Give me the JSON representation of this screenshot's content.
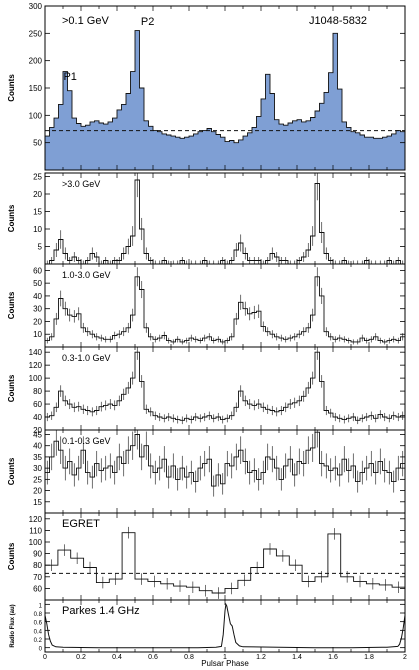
{
  "figure": {
    "source_label": "J1048-5832",
    "x_label": "Pulsar Phase",
    "x_ticks": [
      "0",
      "0.2",
      "0.4",
      "0.6",
      "0.8",
      "1",
      "1.2",
      "1.4",
      "1.6",
      "1.8",
      "2"
    ],
    "fill_color": "#7f9fd4",
    "line_color": "#111111"
  },
  "chart_data": [
    {
      "type": "area",
      "panel_label": ">0.1 GeV",
      "ylabel": "Counts",
      "xlim": [
        0,
        2
      ],
      "ylim": [
        0,
        300
      ],
      "yticks": [
        50,
        100,
        150,
        200,
        250,
        300
      ],
      "filled": true,
      "baseline": 72,
      "peak_labels": [
        {
          "text": "P1",
          "x": 0.14,
          "y": 165
        },
        {
          "text": "P2",
          "x": 0.57,
          "y": 265
        }
      ],
      "values": [
        62,
        78,
        95,
        120,
        180,
        145,
        95,
        85,
        80,
        82,
        88,
        90,
        86,
        84,
        88,
        95,
        110,
        120,
        140,
        180,
        255,
        150,
        90,
        80,
        72,
        70,
        66,
        64,
        62,
        60,
        58,
        60,
        62,
        66,
        70,
        72,
        76,
        70,
        65,
        60,
        52,
        54,
        50,
        55,
        62,
        68,
        78,
        98,
        130,
        175,
        140,
        92,
        84,
        82,
        86,
        90,
        92,
        88,
        90,
        96,
        108,
        122,
        142,
        178,
        250,
        148,
        88,
        78,
        70,
        68,
        64,
        60,
        60,
        58,
        58,
        60,
        62,
        66,
        72,
        70
      ]
    },
    {
      "type": "line",
      "panel_label": ">3.0 GeV",
      "ylabel": "Counts",
      "xlim": [
        0,
        2
      ],
      "ylim": [
        0,
        26
      ],
      "yticks": [
        5,
        10,
        15,
        20,
        25
      ],
      "values": [
        0,
        1,
        4,
        7,
        3,
        1,
        2,
        1,
        0,
        1,
        3,
        2,
        0,
        1,
        0,
        1,
        1,
        3,
        5,
        8,
        24,
        10,
        3,
        1,
        0,
        0,
        1,
        0,
        0,
        0,
        1,
        0,
        0,
        0,
        0,
        1,
        0,
        0,
        0,
        1,
        0,
        1,
        4,
        6,
        3,
        1,
        1,
        1,
        0,
        1,
        3,
        2,
        1,
        1,
        0,
        0,
        1,
        2,
        4,
        8,
        23,
        9,
        3,
        1,
        0,
        0,
        1,
        0,
        0,
        0,
        0,
        1,
        0,
        0,
        0,
        0,
        1,
        0,
        1,
        0
      ]
    },
    {
      "type": "line",
      "panel_label": "1.0-3.0 GeV",
      "ylabel": "Counts",
      "xlim": [
        0,
        2
      ],
      "ylim": [
        0,
        65
      ],
      "yticks": [
        10,
        20,
        30,
        40,
        50,
        60
      ],
      "values": [
        5,
        8,
        22,
        38,
        30,
        25,
        24,
        26,
        15,
        12,
        10,
        8,
        7,
        6,
        6,
        9,
        10,
        12,
        15,
        25,
        55,
        45,
        15,
        8,
        6,
        7,
        9,
        5,
        4,
        6,
        4,
        5,
        7,
        6,
        5,
        7,
        8,
        5,
        6,
        4,
        5,
        8,
        22,
        35,
        30,
        26,
        27,
        28,
        16,
        12,
        10,
        8,
        7,
        6,
        7,
        8,
        10,
        12,
        15,
        25,
        55,
        40,
        12,
        8,
        6,
        7,
        6,
        5,
        4,
        4,
        7,
        5,
        6,
        8,
        5,
        4,
        5,
        6,
        5,
        8
      ]
    },
    {
      "type": "line",
      "panel_label": "0.3-1.0 GeV",
      "ylabel": "Counts",
      "xlim": [
        0,
        2
      ],
      "ylim": [
        20,
        148
      ],
      "yticks": [
        20,
        40,
        60,
        80,
        100,
        120,
        140
      ],
      "values": [
        40,
        42,
        55,
        80,
        65,
        60,
        55,
        56,
        52,
        50,
        48,
        50,
        56,
        58,
        60,
        58,
        65,
        75,
        85,
        100,
        140,
        95,
        52,
        48,
        42,
        40,
        38,
        40,
        38,
        36,
        35,
        38,
        36,
        40,
        38,
        40,
        42,
        38,
        40,
        36,
        38,
        42,
        55,
        80,
        65,
        60,
        58,
        60,
        55,
        52,
        50,
        48,
        50,
        55,
        60,
        62,
        65,
        72,
        85,
        100,
        140,
        95,
        50,
        46,
        40,
        38,
        36,
        38,
        40,
        35,
        38,
        40,
        42,
        38,
        44,
        40,
        38,
        42,
        40,
        42
      ]
    },
    {
      "type": "line",
      "panel_label": "0.1-0.3 GeV",
      "ylabel": "Counts",
      "xlim": [
        0,
        2
      ],
      "ylim": [
        10,
        47
      ],
      "yticks": [
        15,
        20,
        25,
        30,
        35,
        40,
        45
      ],
      "values": [
        28,
        35,
        42,
        38,
        30,
        33,
        27,
        30,
        38,
        28,
        26,
        32,
        29,
        30,
        31,
        28,
        35,
        32,
        38,
        40,
        45,
        35,
        40,
        31,
        28,
        30,
        34,
        26,
        31,
        25,
        30,
        26,
        28,
        24,
        30,
        32,
        34,
        22,
        27,
        23,
        32,
        31,
        35,
        38,
        33,
        28,
        29,
        25,
        28,
        35,
        34,
        30,
        25,
        31,
        34,
        27,
        33,
        32,
        38,
        39,
        46,
        32,
        31,
        29,
        30,
        27,
        34,
        29,
        31,
        24,
        28,
        30,
        32,
        28,
        33,
        29,
        28,
        24,
        30,
        32
      ]
    },
    {
      "type": "line",
      "panel_label": "EGRET",
      "ylabel": "Counts",
      "xlim": [
        0,
        2
      ],
      "ylim": [
        50,
        125
      ],
      "yticks": [
        60,
        70,
        80,
        90,
        100,
        110,
        120
      ],
      "dashed_level": 73,
      "values": [
        80,
        93,
        86,
        78,
        65,
        68,
        108,
        68,
        66,
        64,
        62,
        61,
        58,
        56,
        60,
        67,
        78,
        94,
        88,
        80,
        66,
        70,
        107,
        70,
        66,
        64,
        63,
        61
      ]
    },
    {
      "type": "line",
      "panel_label": "Parkes 1.4 GHz",
      "ylabel": "Radio Flux (au)",
      "xlim": [
        0,
        2
      ],
      "ylim": [
        -0.1,
        1.1
      ],
      "yticks": [
        0,
        0.2,
        0.4,
        0.6,
        0.8,
        1
      ],
      "x": [
        0,
        0.01,
        0.02,
        0.03,
        0.04,
        0.06,
        0.1,
        0.3,
        0.5,
        0.7,
        0.85,
        0.95,
        0.98,
        0.99,
        1.0,
        1.005,
        1.01,
        1.02,
        1.03,
        1.04,
        1.05,
        1.06,
        1.08,
        1.1,
        1.3,
        1.5,
        1.7,
        1.9,
        1.96,
        1.97,
        1.98,
        1.99,
        2.0
      ],
      "y": [
        0.75,
        0.55,
        0.3,
        0.15,
        0.06,
        0.02,
        0.01,
        0,
        0,
        0,
        0,
        0.01,
        0.03,
        0.3,
        0.85,
        1.0,
        0.96,
        0.75,
        0.55,
        0.5,
        0.3,
        0.12,
        0.04,
        0.02,
        0.01,
        0,
        0,
        0.01,
        0.03,
        0.08,
        0.22,
        0.45,
        0.75
      ]
    }
  ]
}
